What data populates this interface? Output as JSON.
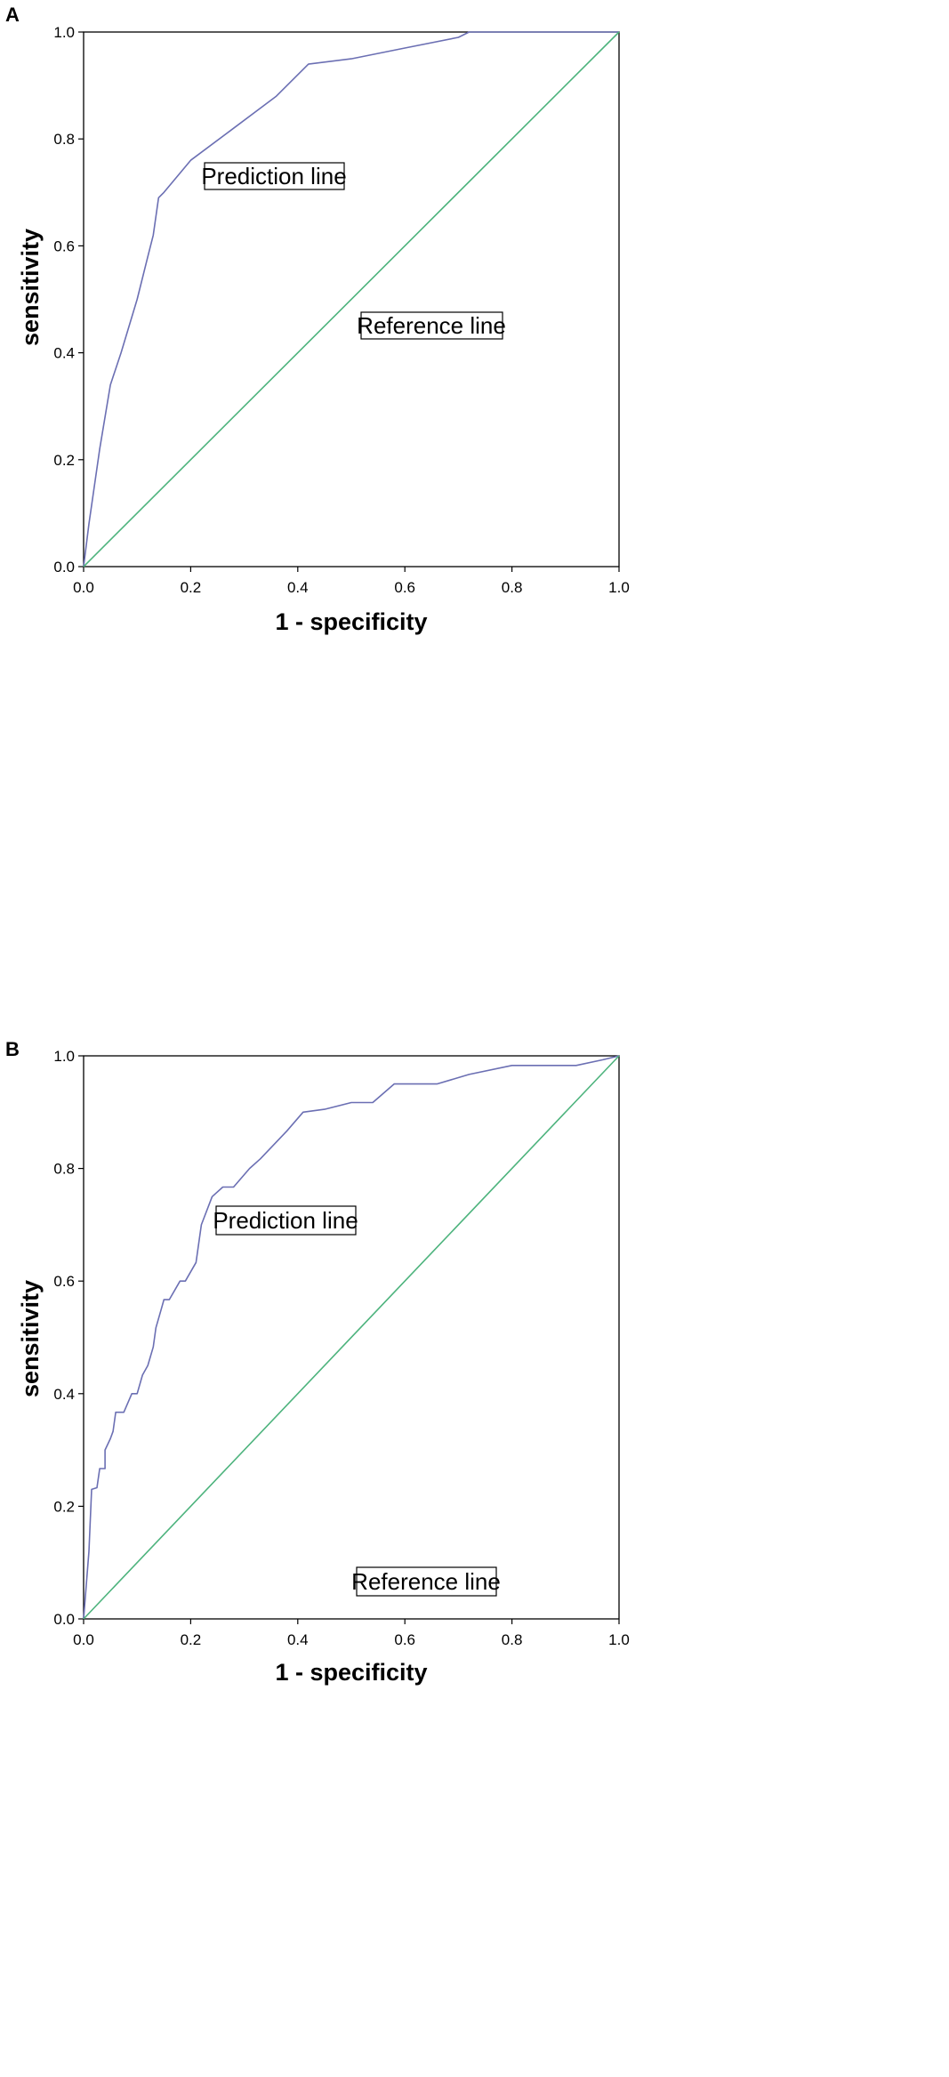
{
  "chart_data": [
    {
      "panel": "A",
      "type": "line",
      "xlabel": "1 - specificity",
      "ylabel": "sensitivity",
      "xlim": [
        0,
        1
      ],
      "ylim": [
        0,
        1
      ],
      "xticks": [
        "0.0",
        "0.2",
        "0.4",
        "0.6",
        "0.8",
        "1.0"
      ],
      "yticks": [
        "0.0",
        "0.2",
        "0.4",
        "0.6",
        "0.8",
        "1.0"
      ],
      "grid": false,
      "annotations": [
        "Prediction line",
        "Reference line"
      ],
      "series": [
        {
          "color": "#6b6fb3",
          "points": [
            [
              0,
              0
            ],
            [
              0.01,
              0.08
            ],
            [
              0.03,
              0.22
            ],
            [
              0.05,
              0.34
            ],
            [
              0.07,
              0.4
            ],
            [
              0.1,
              0.5
            ],
            [
              0.12,
              0.58
            ],
            [
              0.13,
              0.62
            ],
            [
              0.14,
              0.69
            ],
            [
              0.15,
              0.7
            ],
            [
              0.2,
              0.76
            ],
            [
              0.28,
              0.82
            ],
            [
              0.36,
              0.88
            ],
            [
              0.42,
              0.94
            ],
            [
              0.5,
              0.95
            ],
            [
              0.6,
              0.97
            ],
            [
              0.7,
              0.99
            ],
            [
              0.72,
              1.0
            ],
            [
              1.0,
              1.0
            ]
          ]
        },
        {
          "color": "#4db37d",
          "points": [
            [
              0,
              0
            ],
            [
              1,
              1
            ]
          ]
        }
      ]
    },
    {
      "panel": "B",
      "type": "line",
      "xlabel": "1 - specificity",
      "ylabel": "sensitivity",
      "xlim": [
        0,
        1
      ],
      "ylim": [
        0,
        1
      ],
      "xticks": [
        "0.0",
        "0.2",
        "0.4",
        "0.6",
        "0.8",
        "1.0"
      ],
      "yticks": [
        "0.0",
        "0.2",
        "0.4",
        "0.6",
        "0.8",
        "1.0"
      ],
      "grid": false,
      "annotations": [
        "Prediction line",
        "Reference line"
      ],
      "series": [
        {
          "color": "#6b6fb3",
          "points": [
            [
              0,
              0
            ],
            [
              0.01,
              0.12
            ],
            [
              0.015,
              0.23
            ],
            [
              0.025,
              0.233
            ],
            [
              0.03,
              0.267
            ],
            [
              0.04,
              0.267
            ],
            [
              0.04,
              0.3
            ],
            [
              0.05,
              0.32
            ],
            [
              0.055,
              0.333
            ],
            [
              0.06,
              0.367
            ],
            [
              0.075,
              0.367
            ],
            [
              0.09,
              0.4
            ],
            [
              0.1,
              0.4
            ],
            [
              0.11,
              0.433
            ],
            [
              0.12,
              0.45
            ],
            [
              0.13,
              0.483
            ],
            [
              0.135,
              0.517
            ],
            [
              0.145,
              0.55
            ],
            [
              0.15,
              0.567
            ],
            [
              0.16,
              0.567
            ],
            [
              0.18,
              0.6
            ],
            [
              0.19,
              0.6
            ],
            [
              0.21,
              0.633
            ],
            [
              0.22,
              0.7
            ],
            [
              0.24,
              0.75
            ],
            [
              0.26,
              0.767
            ],
            [
              0.28,
              0.767
            ],
            [
              0.31,
              0.8
            ],
            [
              0.33,
              0.817
            ],
            [
              0.38,
              0.867
            ],
            [
              0.41,
              0.9
            ],
            [
              0.45,
              0.905
            ],
            [
              0.5,
              0.917
            ],
            [
              0.54,
              0.917
            ],
            [
              0.58,
              0.95
            ],
            [
              0.66,
              0.95
            ],
            [
              0.72,
              0.967
            ],
            [
              0.8,
              0.983
            ],
            [
              0.92,
              0.983
            ],
            [
              0.97,
              0.993
            ],
            [
              1.0,
              1.0
            ]
          ]
        },
        {
          "color": "#4db37d",
          "points": [
            [
              0,
              0
            ],
            [
              1,
              1
            ]
          ]
        }
      ]
    }
  ]
}
